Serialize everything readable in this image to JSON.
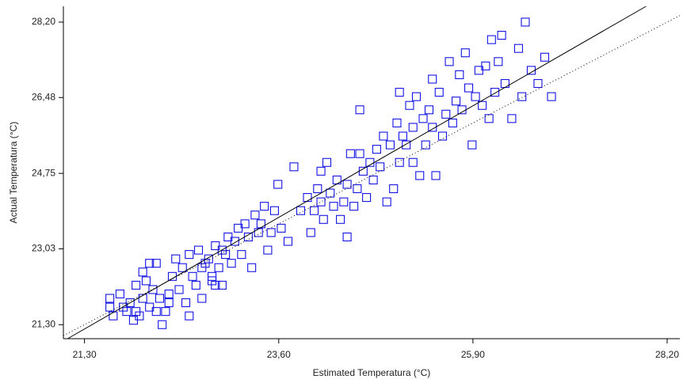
{
  "chart_data": {
    "type": "scatter",
    "x_label": "Estimated Temperatura (°C)",
    "y_label": "Actual Temperatura (°C)",
    "color": "#1414e6",
    "xlim": [
      21.05,
      28.35
    ],
    "ylim": [
      20.98,
      28.56
    ],
    "xticks": [
      {
        "value": 21.3,
        "label": "21,30"
      },
      {
        "value": 23.6,
        "label": "23,60"
      },
      {
        "value": 25.9,
        "label": "25,90"
      },
      {
        "value": 28.2,
        "label": "28,20"
      }
    ],
    "yticks": [
      {
        "value": 21.3,
        "label": "21,30"
      },
      {
        "value": 23.03,
        "label": "23,03"
      },
      {
        "value": 24.75,
        "label": "24,75"
      },
      {
        "value": 26.48,
        "label": "26,48"
      },
      {
        "value": 28.2,
        "label": "28,20"
      }
    ],
    "fit_line": {
      "x": [
        21.1,
        27.95
      ],
      "y": [
        20.98,
        28.56
      ]
    },
    "identity_line": {
      "x": [
        21.05,
        28.35
      ],
      "y": [
        21.05,
        28.35
      ]
    },
    "x": [
      21.6,
      21.6,
      21.64,
      21.72,
      21.76,
      21.8,
      21.84,
      21.88,
      21.91,
      21.91,
      21.95,
      21.99,
      21.99,
      22.03,
      22.07,
      22.07,
      22.11,
      22.15,
      22.15,
      22.19,
      22.22,
      22.26,
      22.3,
      22.3,
      22.34,
      22.42,
      22.46,
      22.5,
      22.54,
      22.54,
      22.58,
      22.62,
      22.65,
      22.69,
      22.69,
      22.73,
      22.77,
      22.81,
      22.85,
      22.85,
      22.89,
      22.93,
      22.93,
      22.97,
      23.0,
      23.04,
      23.08,
      23.12,
      23.16,
      23.2,
      23.24,
      23.28,
      23.32,
      23.36,
      23.39,
      23.43,
      23.47,
      23.51,
      23.55,
      23.59,
      23.63,
      23.71,
      23.86,
      23.94,
      23.98,
      24.02,
      24.06,
      24.1,
      24.1,
      24.13,
      24.17,
      24.21,
      24.25,
      24.29,
      24.33,
      24.37,
      24.41,
      24.45,
      24.49,
      24.53,
      24.56,
      24.6,
      24.64,
      24.68,
      24.72,
      24.76,
      24.8,
      24.84,
      24.88,
      24.92,
      24.96,
      25.0,
      25.03,
      25.07,
      25.11,
      25.15,
      25.19,
      25.19,
      25.23,
      25.27,
      25.31,
      25.34,
      25.38,
      25.42,
      25.42,
      25.46,
      25.5,
      25.54,
      25.58,
      25.62,
      25.66,
      25.7,
      25.74,
      25.77,
      25.81,
      25.85,
      25.89,
      25.93,
      25.97,
      26.01,
      26.05,
      26.09,
      26.12,
      26.16,
      26.2,
      26.28,
      26.36,
      26.44,
      26.48,
      26.52,
      26.59,
      26.67,
      26.75,
      26.83,
      26.24,
      25.03,
      24.56,
      24.41,
      23.78,
      22.81,
      22.38
    ],
    "y": [
      21.9,
      21.7,
      21.5,
      22.0,
      21.7,
      21.6,
      21.8,
      21.4,
      21.6,
      22.2,
      21.5,
      21.9,
      22.5,
      22.3,
      21.7,
      22.7,
      22.1,
      21.6,
      22.7,
      21.9,
      21.3,
      21.6,
      22.0,
      21.8,
      22.4,
      22.1,
      22.6,
      21.8,
      22.9,
      21.5,
      22.4,
      22.2,
      23.0,
      22.6,
      21.9,
      22.7,
      22.8,
      22.4,
      23.1,
      22.2,
      22.6,
      23.0,
      22.2,
      22.9,
      23.3,
      22.7,
      23.2,
      23.5,
      22.9,
      23.6,
      23.3,
      22.6,
      23.8,
      23.4,
      23.6,
      24.0,
      23.0,
      23.4,
      23.9,
      24.5,
      23.5,
      23.2,
      23.9,
      24.2,
      23.4,
      23.9,
      24.4,
      24.1,
      24.8,
      23.7,
      25.0,
      24.3,
      24.0,
      24.6,
      23.7,
      24.1,
      24.5,
      25.2,
      24.0,
      24.4,
      25.2,
      24.8,
      24.2,
      25.0,
      24.6,
      25.3,
      24.9,
      25.6,
      24.1,
      25.4,
      24.4,
      25.9,
      25.0,
      25.6,
      25.4,
      26.3,
      25.0,
      25.8,
      26.5,
      24.7,
      26.0,
      25.4,
      26.2,
      26.9,
      25.8,
      24.7,
      26.6,
      25.6,
      26.1,
      27.3,
      25.9,
      26.4,
      27.0,
      26.2,
      27.5,
      26.7,
      25.4,
      26.5,
      27.1,
      26.3,
      27.2,
      26.0,
      27.8,
      26.6,
      27.3,
      26.8,
      26.0,
      27.6,
      26.5,
      28.2,
      27.1,
      26.8,
      27.4,
      26.5,
      27.9,
      26.6,
      26.2,
      23.3,
      24.9,
      22.3,
      22.8
    ]
  }
}
